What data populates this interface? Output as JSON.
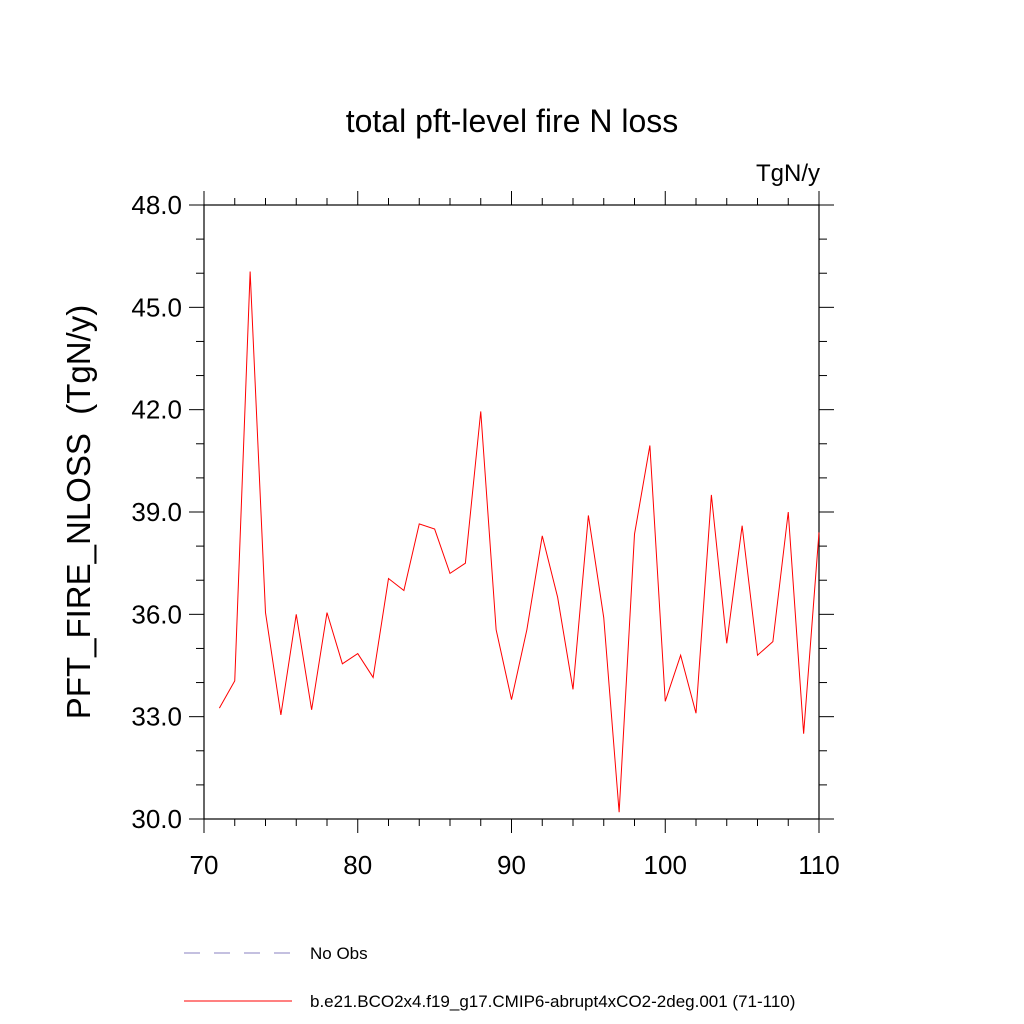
{
  "chart_data": {
    "type": "line",
    "title": "total pft-level fire N loss",
    "units_label": "TgN/y",
    "ylabel": "PFT_FIRE_NLOSS  (TgN/y)",
    "xlabel": "",
    "xlim": [
      70,
      110
    ],
    "ylim": [
      30,
      48
    ],
    "xticks": [
      70,
      80,
      90,
      100,
      110
    ],
    "xtick_labels": [
      "70",
      "80",
      "90",
      "100",
      "110"
    ],
    "yticks": [
      30,
      33,
      36,
      39,
      42,
      45,
      48
    ],
    "ytick_labels": [
      "30.0",
      "33.0",
      "36.0",
      "39.0",
      "42.0",
      "45.0",
      "48.0"
    ],
    "grid": false,
    "x": [
      71,
      72,
      73,
      74,
      75,
      76,
      77,
      78,
      79,
      80,
      81,
      82,
      83,
      84,
      85,
      86,
      87,
      88,
      89,
      90,
      91,
      92,
      93,
      94,
      95,
      96,
      97,
      98,
      99,
      100,
      101,
      102,
      103,
      104,
      105,
      106,
      107,
      108,
      109,
      110
    ],
    "series": [
      {
        "name": "b.e21.BCO2x4.f19_g17.CMIP6-abrupt4xCO2-2deg.001 (71-110)",
        "color": "#ff0000",
        "values": [
          33.25,
          34.05,
          46.05,
          36.05,
          33.05,
          36.0,
          33.2,
          36.05,
          34.55,
          34.85,
          34.15,
          37.05,
          36.7,
          38.65,
          38.5,
          37.2,
          37.5,
          41.95,
          35.55,
          33.5,
          35.55,
          38.3,
          36.5,
          33.8,
          38.9,
          35.9,
          30.2,
          38.35,
          40.95,
          33.45,
          34.8,
          33.1,
          39.5,
          35.15,
          38.6,
          34.8,
          35.2,
          39.0,
          32.5,
          38.4
        ]
      }
    ],
    "legend": [
      {
        "label": "No Obs",
        "style": "dashed",
        "color": "#8a80c0"
      },
      {
        "label": "b.e21.BCO2x4.f19_g17.CMIP6-abrupt4xCO2-2deg.001 (71-110)",
        "style": "solid",
        "color": "#ff0000"
      }
    ],
    "legend_position": "bottom"
  }
}
